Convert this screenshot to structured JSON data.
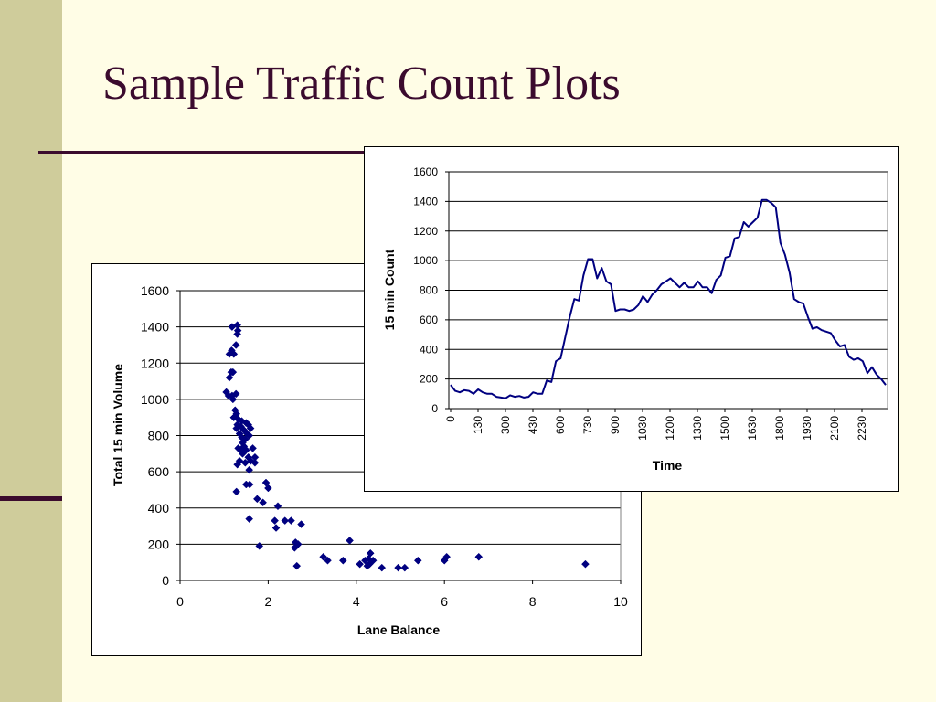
{
  "slide": {
    "title": "Sample Traffic Count Plots",
    "colors": {
      "background": "#FFFDE6",
      "sidebar": "#CFCC9B",
      "accent": "#3B0B2E",
      "series": "#000080"
    }
  },
  "chart_data": [
    {
      "type": "scatter",
      "title": "",
      "xlabel": "Lane Balance",
      "ylabel": "Total 15 min Volume",
      "xlim": [
        0,
        10
      ],
      "ylim": [
        0,
        1600
      ],
      "x_ticks": [
        "0",
        "2",
        "4",
        "6",
        "8",
        "10"
      ],
      "y_ticks": [
        "0",
        "200",
        "400",
        "600",
        "800",
        "1000",
        "1200",
        "1400",
        "1600"
      ],
      "grid": "horizontal",
      "legend": "none",
      "marker": "diamond",
      "series": [
        {
          "points": [
            [
              1.18,
              1400
            ],
            [
              1.3,
              1410
            ],
            [
              1.3,
              1360
            ],
            [
              1.31,
              1380
            ],
            [
              1.27,
              1300
            ],
            [
              1.17,
              1270
            ],
            [
              1.12,
              1250
            ],
            [
              1.22,
              1250
            ],
            [
              1.16,
              1150
            ],
            [
              1.2,
              1150
            ],
            [
              1.12,
              1120
            ],
            [
              1.05,
              1040
            ],
            [
              1.1,
              1020
            ],
            [
              1.18,
              1020
            ],
            [
              1.27,
              1030
            ],
            [
              1.2,
              1000
            ],
            [
              1.25,
              940
            ],
            [
              1.28,
              920
            ],
            [
              1.22,
              900
            ],
            [
              1.32,
              890
            ],
            [
              1.4,
              880
            ],
            [
              1.3,
              860
            ],
            [
              1.38,
              850
            ],
            [
              1.5,
              870
            ],
            [
              1.55,
              860
            ],
            [
              1.6,
              840
            ],
            [
              1.28,
              840
            ],
            [
              1.45,
              830
            ],
            [
              1.35,
              810
            ],
            [
              1.4,
              790
            ],
            [
              1.52,
              810
            ],
            [
              1.57,
              800
            ],
            [
              1.48,
              780
            ],
            [
              1.42,
              760
            ],
            [
              1.32,
              730
            ],
            [
              1.38,
              720
            ],
            [
              1.45,
              740
            ],
            [
              1.42,
              700
            ],
            [
              1.5,
              720
            ],
            [
              1.65,
              730
            ],
            [
              1.55,
              680
            ],
            [
              1.6,
              660
            ],
            [
              1.7,
              650
            ],
            [
              1.7,
              680
            ],
            [
              1.35,
              660
            ],
            [
              1.3,
              640
            ],
            [
              1.48,
              650
            ],
            [
              1.57,
              610
            ],
            [
              1.5,
              530
            ],
            [
              1.58,
              530
            ],
            [
              1.28,
              490
            ],
            [
              1.95,
              540
            ],
            [
              2.0,
              510
            ],
            [
              1.75,
              450
            ],
            [
              1.88,
              430
            ],
            [
              2.22,
              410
            ],
            [
              1.57,
              340
            ],
            [
              2.15,
              330
            ],
            [
              2.18,
              290
            ],
            [
              2.38,
              330
            ],
            [
              2.52,
              330
            ],
            [
              2.75,
              310
            ],
            [
              1.8,
              190
            ],
            [
              2.6,
              180
            ],
            [
              2.62,
              210
            ],
            [
              2.68,
              200
            ],
            [
              2.65,
              80
            ],
            [
              3.25,
              130
            ],
            [
              3.35,
              110
            ],
            [
              3.7,
              110
            ],
            [
              3.85,
              220
            ],
            [
              4.08,
              90
            ],
            [
              4.2,
              110
            ],
            [
              4.28,
              120
            ],
            [
              4.32,
              150
            ],
            [
              4.25,
              80
            ],
            [
              4.38,
              110
            ],
            [
              4.3,
              90
            ],
            [
              4.58,
              70
            ],
            [
              4.95,
              70
            ],
            [
              5.1,
              70
            ],
            [
              5.4,
              110
            ],
            [
              6.0,
              110
            ],
            [
              6.05,
              130
            ],
            [
              6.78,
              130
            ],
            [
              9.2,
              90
            ]
          ]
        }
      ]
    },
    {
      "type": "line",
      "title": "",
      "xlabel": "Time",
      "ylabel": "15 min Count",
      "ylim": [
        0,
        1600
      ],
      "x_ticks": [
        "0",
        "130",
        "300",
        "430",
        "600",
        "730",
        "900",
        "1030",
        "1200",
        "1330",
        "1500",
        "1630",
        "1800",
        "1930",
        "2100",
        "2230"
      ],
      "y_ticks": [
        "0",
        "200",
        "400",
        "600",
        "800",
        "1000",
        "1200",
        "1400",
        "1600"
      ],
      "grid": "horizontal",
      "legend": "none",
      "series": [
        {
          "values": [
            160,
            120,
            110,
            125,
            120,
            100,
            130,
            110,
            100,
            100,
            80,
            75,
            70,
            90,
            80,
            85,
            75,
            80,
            110,
            100,
            100,
            190,
            180,
            320,
            340,
            480,
            620,
            740,
            730,
            900,
            1010,
            1010,
            880,
            950,
            860,
            840,
            660,
            670,
            670,
            660,
            670,
            700,
            760,
            720,
            770,
            800,
            840,
            860,
            880,
            850,
            820,
            850,
            820,
            820,
            860,
            820,
            820,
            780,
            870,
            900,
            1020,
            1030,
            1150,
            1160,
            1260,
            1230,
            1260,
            1290,
            1410,
            1410,
            1390,
            1360,
            1120,
            1040,
            920,
            740,
            720,
            710,
            620,
            540,
            550,
            530,
            520,
            510,
            460,
            420,
            430,
            350,
            330,
            340,
            320,
            240,
            280,
            230,
            200,
            160
          ]
        }
      ]
    }
  ]
}
